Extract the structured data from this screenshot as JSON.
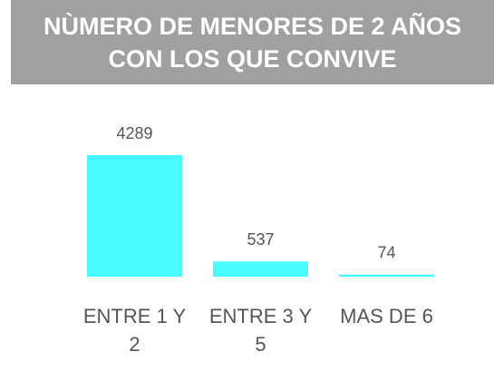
{
  "chart_data": {
    "type": "bar",
    "title": "NÙMERO DE MENORES DE 2 AÑOS CON LOS QUE CONVIVE",
    "categories": [
      "ENTRE 1 Y 2",
      "ENTRE 3 Y 5",
      "MAS DE 6"
    ],
    "values": [
      4289,
      537,
      74
    ],
    "color": "#47fdff"
  }
}
